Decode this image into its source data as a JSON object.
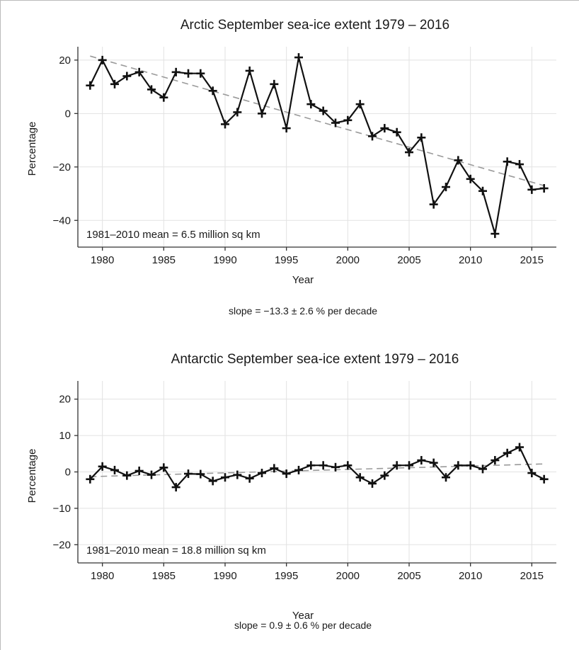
{
  "chart_data": [
    {
      "type": "line",
      "title": "Arctic September sea-ice extent 1979 – 2016",
      "xlabel": "Year",
      "ylabel": "Percentage",
      "xlim": [
        1978,
        2017
      ],
      "ylim": [
        -50,
        25
      ],
      "x_ticks": [
        1980,
        1985,
        1990,
        1995,
        2000,
        2005,
        2010,
        2015
      ],
      "x_tick_labels": [
        "1980",
        "1985",
        "1990",
        "1995",
        "2000",
        "2005",
        "2010",
        "2015"
      ],
      "y_ticks": [
        20,
        0,
        -20,
        -40
      ],
      "y_tick_labels": [
        "20",
        "0",
        "−20",
        "−40"
      ],
      "grid": true,
      "annotation": "1981–2010 mean = 6.5 million sq km",
      "footnote": "slope = −13.3 ± 2.6 % per decade",
      "trend": {
        "x": [
          1979,
          2016
        ],
        "y": [
          21.5,
          -27
        ]
      },
      "series": [
        {
          "x": [
            1979,
            1980,
            1981,
            1982,
            1983,
            1984,
            1985,
            1986,
            1987,
            1988,
            1989,
            1990,
            1991,
            1992,
            1993,
            1994,
            1995,
            1996,
            1997,
            1998,
            1999,
            2000,
            2001,
            2002,
            2003,
            2004,
            2005,
            2006,
            2007,
            2008,
            2009,
            2010,
            2011,
            2012,
            2013,
            2014,
            2015,
            2016
          ],
          "y": [
            10.5,
            20,
            11,
            14,
            15.5,
            9,
            6,
            15.5,
            15,
            15,
            8.5,
            -4,
            0.5,
            16,
            0,
            11,
            -5.5,
            21,
            3.5,
            1,
            -3.5,
            -2.5,
            3.5,
            -8.5,
            -5.5,
            -7,
            -14.5,
            -9,
            -34,
            -27.5,
            -17.5,
            -24.5,
            -29,
            -45,
            -18,
            -19,
            -28.5,
            -28
          ]
        }
      ]
    },
    {
      "type": "line",
      "title": "Antarctic September sea-ice extent 1979 – 2016",
      "xlabel": "Year",
      "ylabel": "Percentage",
      "xlim": [
        1978,
        2017
      ],
      "ylim": [
        -25,
        25
      ],
      "x_ticks": [
        1980,
        1985,
        1990,
        1995,
        2000,
        2005,
        2010,
        2015
      ],
      "x_tick_labels": [
        "1980",
        "1985",
        "1990",
        "1995",
        "2000",
        "2005",
        "2010",
        "2015"
      ],
      "y_ticks": [
        20,
        10,
        0,
        -10,
        -20
      ],
      "y_tick_labels": [
        "20",
        "10",
        "0",
        "−10",
        "−20"
      ],
      "grid": true,
      "annotation": "1981–2010 mean = 18.8 million sq km",
      "footnote": "slope = 0.9 ± 0.6 % per decade",
      "trend": {
        "x": [
          1979,
          2016
        ],
        "y": [
          -1.3,
          2.2
        ]
      },
      "series": [
        {
          "x": [
            1979,
            1980,
            1981,
            1982,
            1983,
            1984,
            1985,
            1986,
            1987,
            1988,
            1989,
            1990,
            1991,
            1992,
            1993,
            1994,
            1995,
            1996,
            1997,
            1998,
            1999,
            2000,
            2001,
            2002,
            2003,
            2004,
            2005,
            2006,
            2007,
            2008,
            2009,
            2010,
            2011,
            2012,
            2013,
            2014,
            2015,
            2016
          ],
          "y": [
            -2,
            1.5,
            0.5,
            -1,
            0.3,
            -0.8,
            1.2,
            -4.2,
            -0.5,
            -0.6,
            -2.5,
            -1.5,
            -0.8,
            -1.8,
            -0.3,
            1,
            -0.5,
            0.5,
            1.8,
            1.8,
            1.3,
            1.8,
            -1.5,
            -3.2,
            -1,
            1.8,
            1.8,
            3.2,
            2.5,
            -1.5,
            1.8,
            1.8,
            0.8,
            3.2,
            5.2,
            6.8,
            -0.3,
            -2
          ]
        }
      ]
    }
  ]
}
